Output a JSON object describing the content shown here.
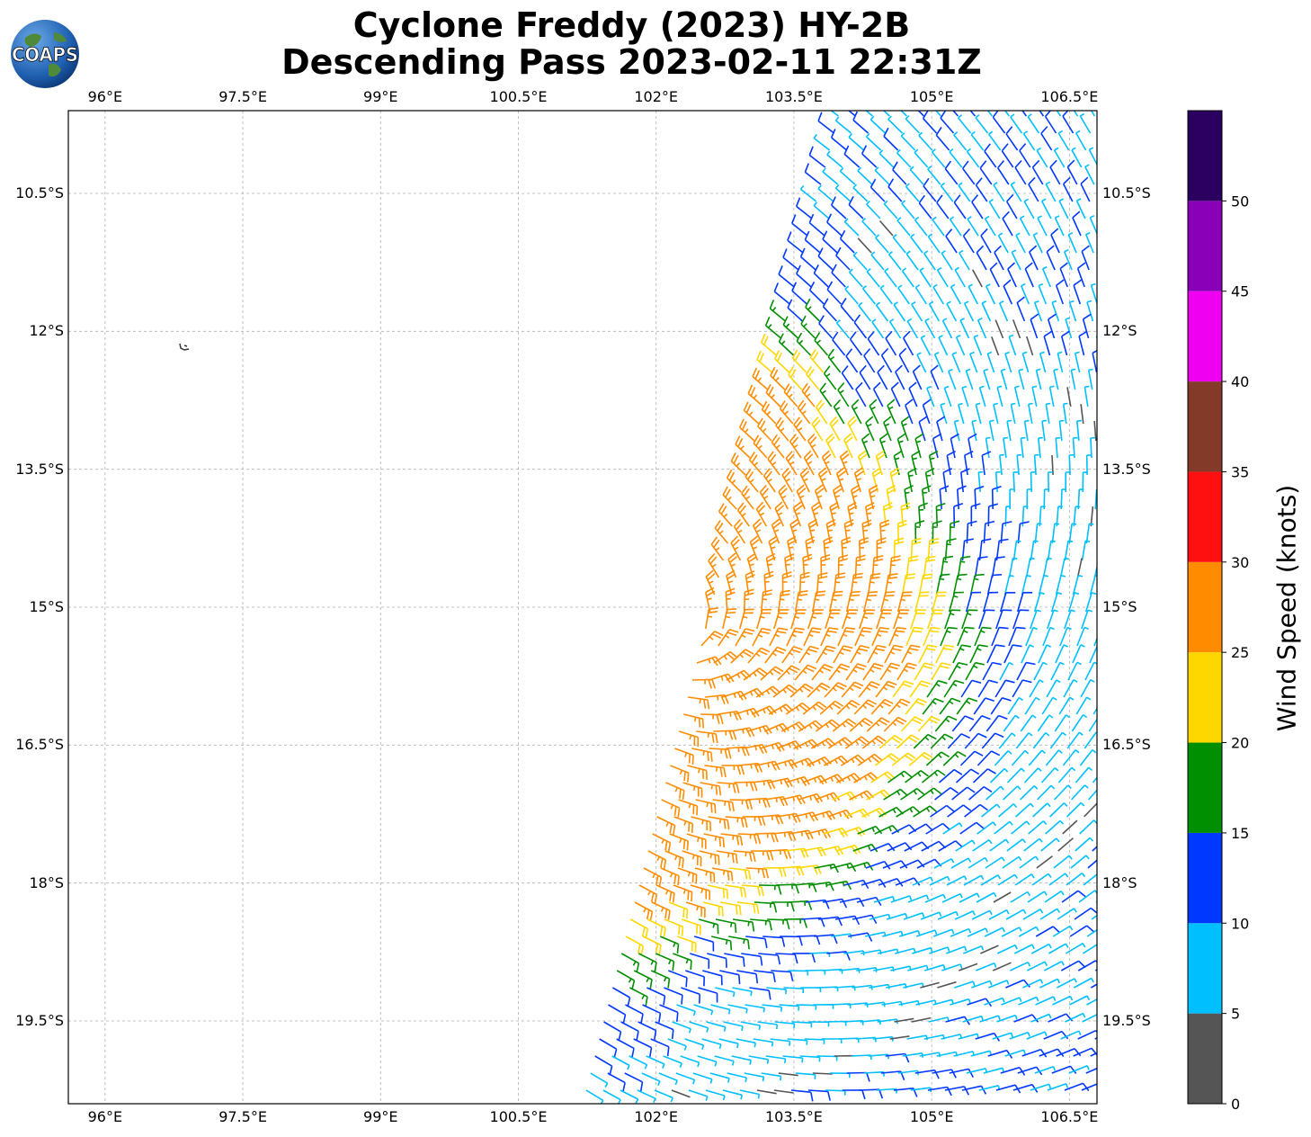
{
  "title": {
    "line1": "Cyclone Freddy (2023) HY-2B",
    "line2": "Descending Pass 2023-02-11 22:31Z"
  },
  "logo": {
    "text": "COAPS",
    "icon": "globe-icon"
  },
  "map": {
    "lon_ticks": [
      "96°E",
      "97.5°E",
      "99°E",
      "100.5°E",
      "102°E",
      "103.5°E",
      "105°E",
      "106.5°E"
    ],
    "lat_ticks": [
      "10.5°S",
      "12°S",
      "13.5°S",
      "15°S",
      "16.5°S",
      "18°S",
      "19.5°S"
    ],
    "lon_range": [
      95.6,
      106.8
    ],
    "lat_range": [
      9.6,
      20.4
    ],
    "grid": true,
    "wind_field": {
      "type": "wind-barbs",
      "storm_center_lon": 102.2,
      "storm_center_lat": 15.3,
      "swath_west_edge_top_lon": 104.0,
      "swath_west_edge_bottom_lon": 101.2
    }
  },
  "colorbar": {
    "title": "Wind Speed (knots)",
    "ticks": [
      "0",
      "5",
      "10",
      "15",
      "20",
      "25",
      "30",
      "35",
      "40",
      "45",
      "50"
    ],
    "colors": [
      "#555555",
      "#00bfff",
      "#0038ff",
      "#008f00",
      "#ffd700",
      "#ff8c00",
      "#ff1010",
      "#833a28",
      "#f000f0",
      "#8a00b8",
      "#2b0060"
    ],
    "range": [
      0,
      55
    ]
  }
}
